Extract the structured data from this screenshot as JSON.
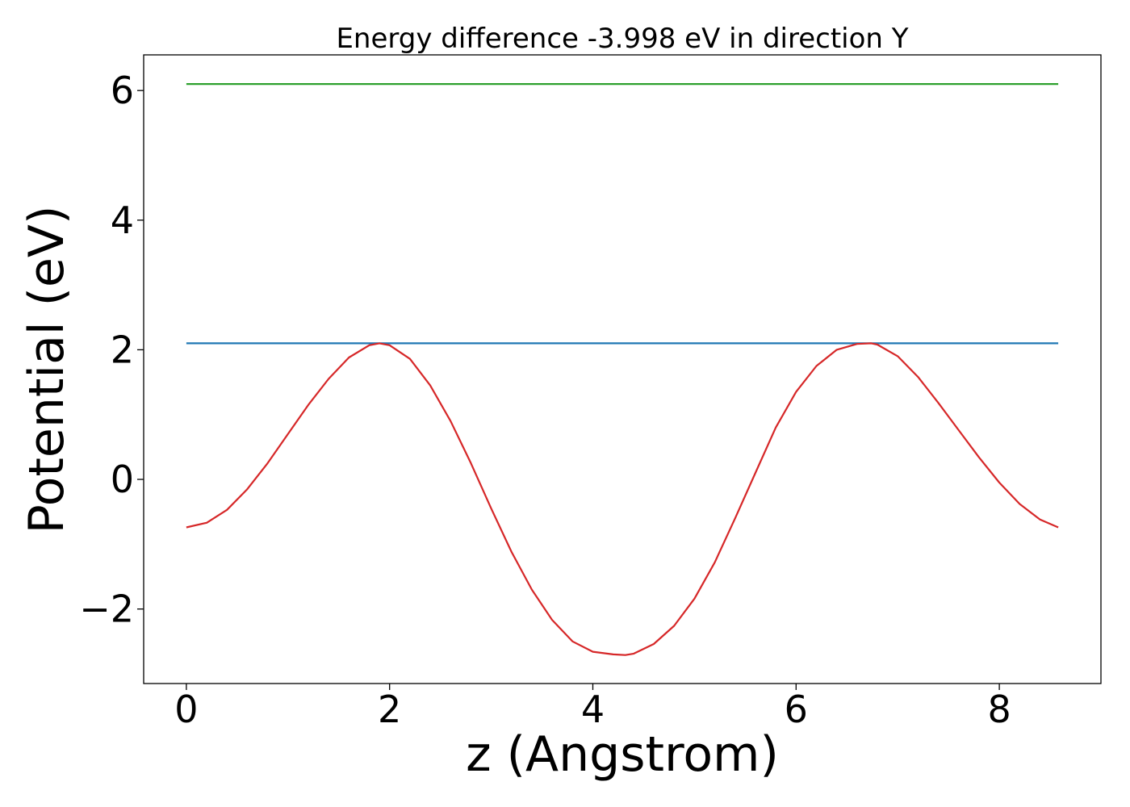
{
  "chart_data": {
    "type": "line",
    "title": "Energy difference -3.998 eV in direction Y",
    "xlabel": "z (Angstrom)",
    "ylabel": "Potential (eV)",
    "xlim": [
      -0.42,
      9.0
    ],
    "ylim": [
      -3.15,
      6.55
    ],
    "x_ticks": [
      0,
      2,
      4,
      6,
      8
    ],
    "x_tick_labels": [
      "0",
      "2",
      "4",
      "6",
      "8"
    ],
    "y_ticks": [
      -2,
      0,
      2,
      4,
      6
    ],
    "y_tick_labels": [
      "−2",
      "0",
      "2",
      "4",
      "6"
    ],
    "grid": false,
    "series": [
      {
        "color": "#2ca02c",
        "x": [
          0,
          8.58
        ],
        "y": [
          6.1,
          6.1
        ]
      },
      {
        "color": "#1f77b4",
        "x": [
          0,
          8.58
        ],
        "y": [
          2.1,
          2.1
        ]
      },
      {
        "color": "#d62728",
        "x": [
          0,
          0.2,
          0.4,
          0.6,
          0.8,
          1.0,
          1.2,
          1.4,
          1.6,
          1.8,
          1.9,
          2.0,
          2.2,
          2.4,
          2.6,
          2.8,
          3.0,
          3.2,
          3.4,
          3.6,
          3.8,
          4.0,
          4.2,
          4.32,
          4.4,
          4.6,
          4.8,
          5.0,
          5.2,
          5.4,
          5.6,
          5.8,
          6.0,
          6.2,
          6.4,
          6.6,
          6.74,
          6.8,
          7.0,
          7.2,
          7.4,
          7.6,
          7.8,
          8.0,
          8.2,
          8.4,
          8.58
        ],
        "y": [
          -0.74,
          -0.67,
          -0.47,
          -0.15,
          0.25,
          0.7,
          1.15,
          1.55,
          1.88,
          2.07,
          2.1,
          2.07,
          1.86,
          1.45,
          0.9,
          0.25,
          -0.45,
          -1.12,
          -1.7,
          -2.17,
          -2.5,
          -2.66,
          -2.7,
          -2.71,
          -2.69,
          -2.54,
          -2.26,
          -1.84,
          -1.28,
          -0.6,
          0.1,
          0.8,
          1.35,
          1.75,
          2.0,
          2.09,
          2.1,
          2.08,
          1.9,
          1.58,
          1.18,
          0.76,
          0.34,
          -0.05,
          -0.38,
          -0.62,
          -0.74
        ]
      }
    ]
  }
}
